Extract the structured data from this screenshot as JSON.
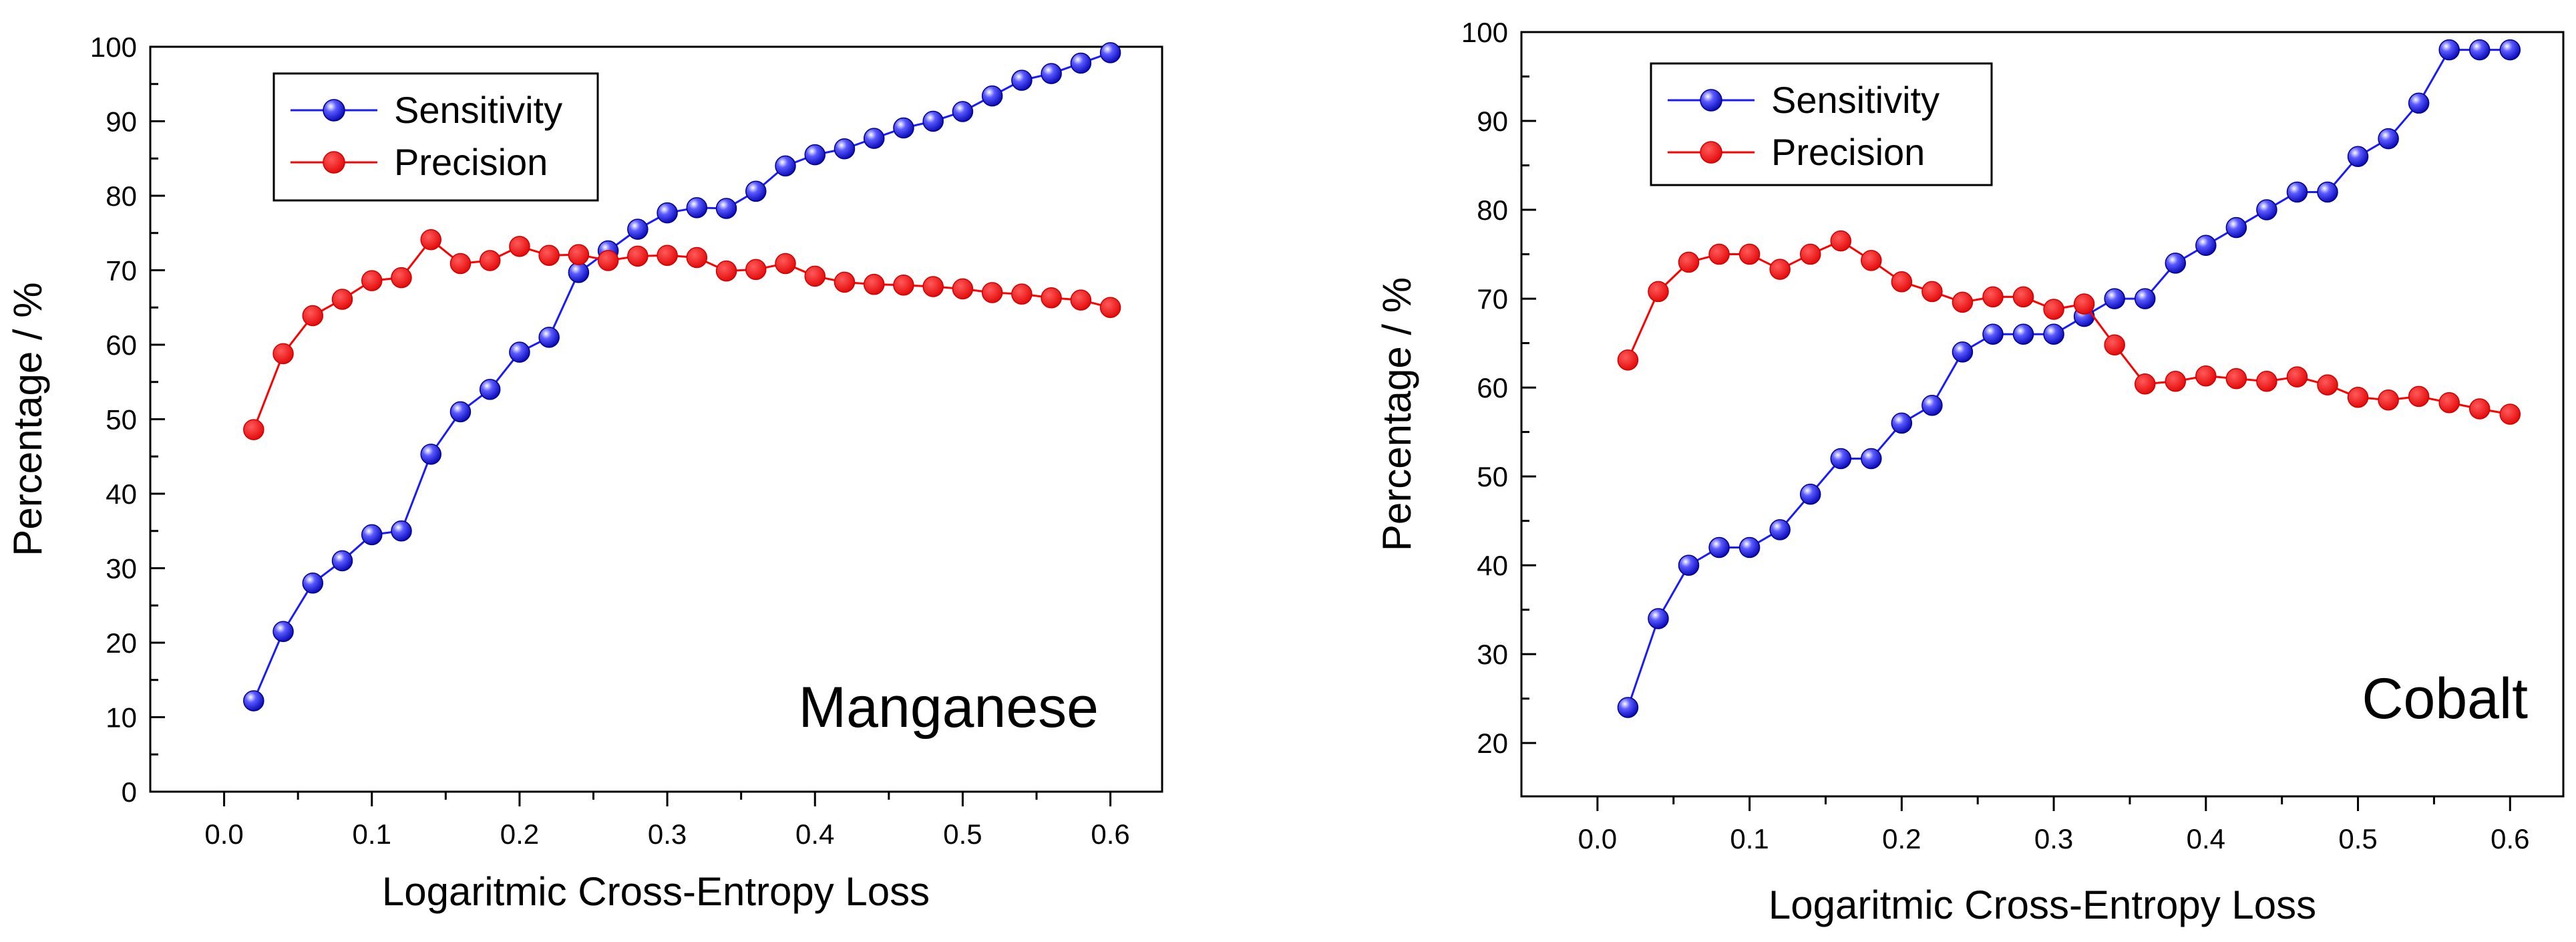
{
  "chart_data": [
    {
      "type": "line",
      "annotation": "Manganese",
      "xlabel": "Logaritmic Cross-Entropy Loss",
      "ylabel": "Percentage / %",
      "xlim": [
        -0.05,
        0.635
      ],
      "ylim": [
        0,
        100
      ],
      "xticks": [
        0.0,
        0.1,
        0.2,
        0.3,
        0.4,
        0.5,
        0.6
      ],
      "xtick_labels": [
        "0.0",
        "0.1",
        "0.2",
        "0.3",
        "0.4",
        "0.5",
        "0.6"
      ],
      "yticks": [
        0,
        10,
        20,
        30,
        40,
        50,
        60,
        70,
        80,
        90,
        100
      ],
      "ytick_labels": [
        "0",
        "10",
        "20",
        "30",
        "40",
        "50",
        "60",
        "70",
        "80",
        "90",
        "100"
      ],
      "legend_position": "top-left",
      "x": [
        0.02,
        0.04,
        0.06,
        0.08,
        0.1,
        0.12,
        0.14,
        0.16,
        0.18,
        0.2,
        0.22,
        0.24,
        0.26,
        0.28,
        0.3,
        0.32,
        0.34,
        0.36,
        0.38,
        0.4,
        0.42,
        0.44,
        0.46,
        0.48,
        0.5,
        0.52,
        0.54,
        0.56,
        0.58,
        0.6
      ],
      "series": [
        {
          "name": "Sensitivity",
          "color": "#1a1aff",
          "values": [
            12.2,
            21.5,
            28,
            31,
            34.5,
            35,
            45.3,
            51,
            54,
            59,
            61,
            69.7,
            72.6,
            75.5,
            77.7,
            78.4,
            78.3,
            80.6,
            84,
            85.5,
            86.3,
            87.7,
            89.1,
            90,
            91.3,
            93.4,
            95.5,
            96.4,
            97.8,
            99.2
          ]
        },
        {
          "name": "Precision",
          "color": "#ff0000",
          "values": [
            48.6,
            58.8,
            63.9,
            66.1,
            68.6,
            69,
            74.1,
            70.9,
            71.3,
            73.2,
            72,
            72.1,
            71.3,
            71.9,
            72,
            71.7,
            69.9,
            70.1,
            70.9,
            69.2,
            68.4,
            68.1,
            68,
            67.8,
            67.5,
            67,
            66.8,
            66.3,
            66,
            65
          ]
        }
      ]
    },
    {
      "type": "line",
      "annotation": "Cobalt",
      "xlabel": "Logaritmic Cross-Entropy Loss",
      "ylabel": "Percentage / %",
      "xlim": [
        -0.05,
        0.635
      ],
      "ylim": [
        14,
        100
      ],
      "xticks": [
        0.0,
        0.1,
        0.2,
        0.3,
        0.4,
        0.5,
        0.6
      ],
      "xtick_labels": [
        "0.0",
        "0.1",
        "0.2",
        "0.3",
        "0.4",
        "0.5",
        "0.6"
      ],
      "yticks": [
        20,
        30,
        40,
        50,
        60,
        70,
        80,
        90,
        100
      ],
      "ytick_labels": [
        "20",
        "30",
        "40",
        "50",
        "60",
        "70",
        "80",
        "90",
        "100"
      ],
      "legend_position": "top-left",
      "x": [
        0.02,
        0.04,
        0.06,
        0.08,
        0.1,
        0.12,
        0.14,
        0.16,
        0.18,
        0.2,
        0.22,
        0.24,
        0.26,
        0.28,
        0.3,
        0.32,
        0.34,
        0.36,
        0.38,
        0.4,
        0.42,
        0.44,
        0.46,
        0.48,
        0.5,
        0.52,
        0.54,
        0.56,
        0.58,
        0.6
      ],
      "series": [
        {
          "name": "Sensitivity",
          "color": "#1a1aff",
          "values": [
            24,
            34,
            40,
            42,
            42,
            44,
            48,
            52,
            52,
            56,
            58,
            64,
            66,
            66,
            66,
            68,
            70,
            70,
            74,
            76,
            78,
            80,
            82,
            82,
            86,
            88,
            92,
            98,
            98,
            98
          ]
        },
        {
          "name": "Precision",
          "color": "#ff0000",
          "values": [
            63.1,
            70.8,
            74.1,
            75,
            75,
            73.3,
            75,
            76.5,
            74.3,
            71.9,
            70.8,
            69.6,
            70.2,
            70.2,
            68.8,
            69.4,
            64.8,
            60.4,
            60.7,
            61.3,
            61,
            60.7,
            61.2,
            60.3,
            58.9,
            58.6,
            59,
            58.3,
            57.6,
            57
          ]
        }
      ]
    }
  ]
}
